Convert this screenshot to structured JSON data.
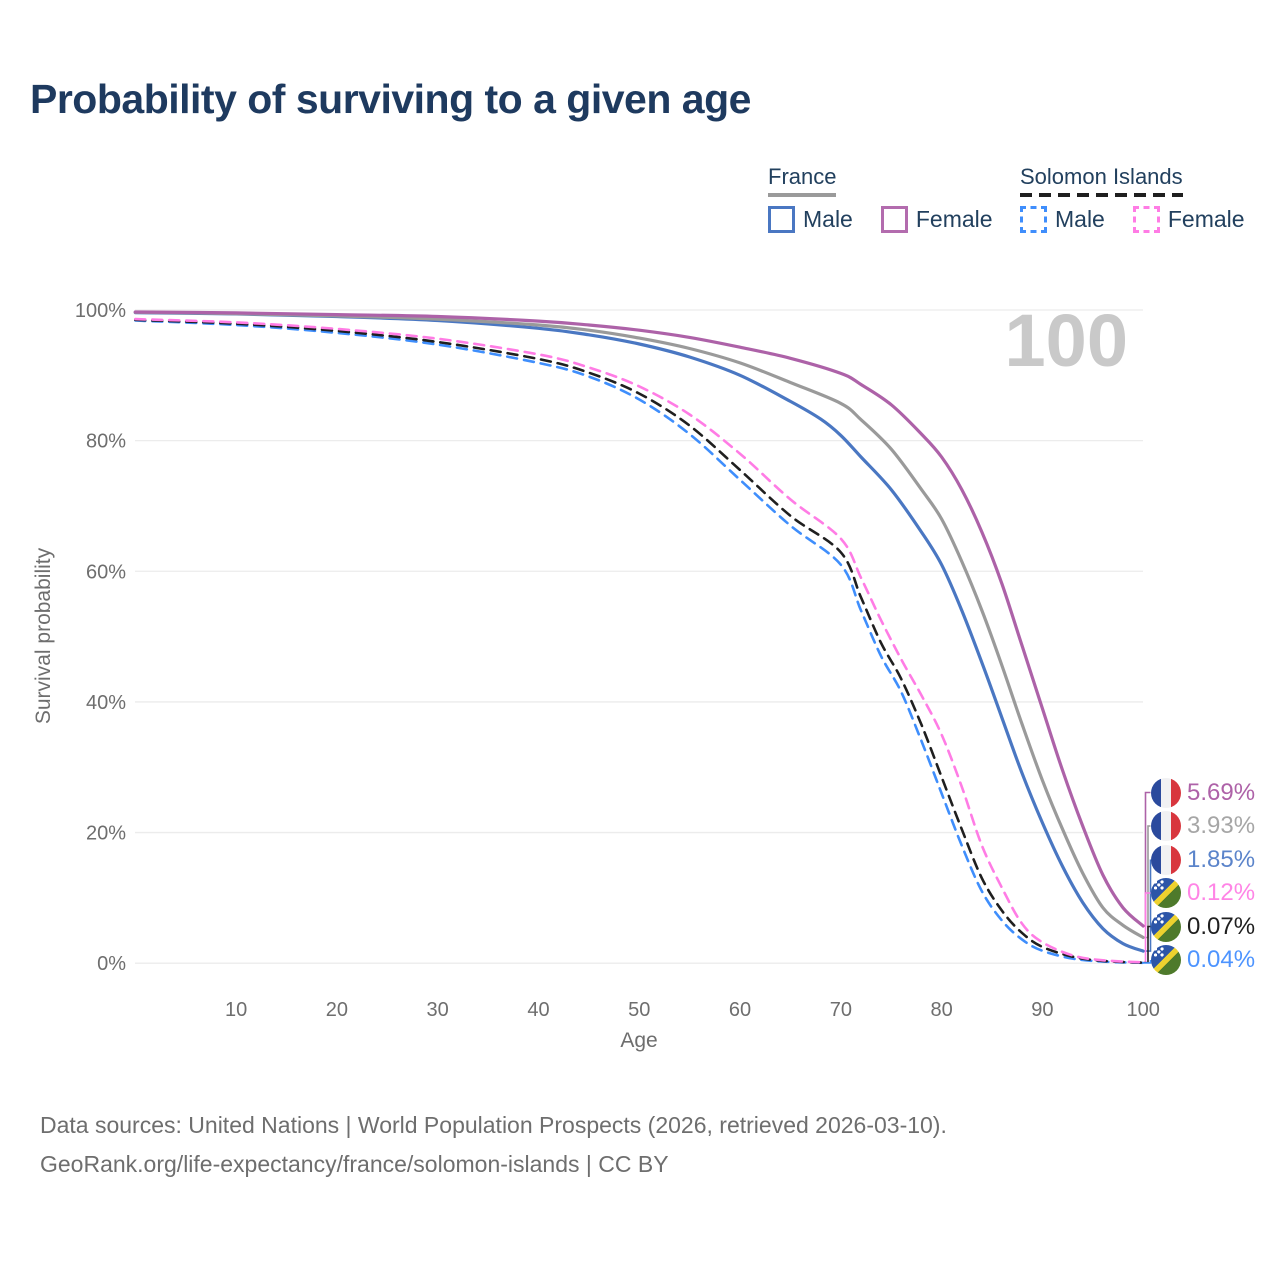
{
  "title": "Probability of surviving to a given age",
  "watermark_age": "100",
  "legend": {
    "groups": [
      {
        "label": "France",
        "line_style": "solid",
        "items": [
          {
            "label": "Male",
            "swatch_color": "#4a77c2",
            "dashed": false
          },
          {
            "label": "Female",
            "swatch_color": "#b36cae",
            "dashed": false
          }
        ]
      },
      {
        "label": "Solomon Islands",
        "line_style": "dashed",
        "items": [
          {
            "label": "Male",
            "swatch_color": "#3f8efc",
            "dashed": true
          },
          {
            "label": "Female",
            "swatch_color": "#ff7ce5",
            "dashed": true
          }
        ]
      }
    ]
  },
  "axes": {
    "y_label": "Survival probability",
    "x_label": "Age",
    "y_ticks": [
      {
        "value": 0,
        "label": "0%"
      },
      {
        "value": 20,
        "label": "20%"
      },
      {
        "value": 40,
        "label": "40%"
      },
      {
        "value": 60,
        "label": "60%"
      },
      {
        "value": 80,
        "label": "80%"
      },
      {
        "value": 100,
        "label": "100%"
      }
    ],
    "x_ticks": [
      {
        "value": 10,
        "label": "10"
      },
      {
        "value": 20,
        "label": "20"
      },
      {
        "value": 30,
        "label": "30"
      },
      {
        "value": 40,
        "label": "40"
      },
      {
        "value": 50,
        "label": "50"
      },
      {
        "value": 60,
        "label": "60"
      },
      {
        "value": 70,
        "label": "70"
      },
      {
        "value": 80,
        "label": "80"
      },
      {
        "value": 90,
        "label": "90"
      },
      {
        "value": 100,
        "label": "100"
      }
    ]
  },
  "footer": {
    "line1": "Data sources: United Nations | World Population Prospects (2026, retrieved 2026-03-10).",
    "line2": "GeoRank.org/life-expectancy/france/solomon-islands | CC BY"
  },
  "chart_data": {
    "type": "line",
    "title": "Probability of surviving to a given age",
    "xlabel": "Age",
    "ylabel": "Survival probability",
    "xlim": [
      0,
      100
    ],
    "ylim": [
      0,
      100
    ],
    "grid": "horizontal",
    "legend_position": "top-right",
    "series": [
      {
        "id": "solomon-islands-male",
        "name": "Solomon Islands Male",
        "country": "Solomon Islands",
        "sex": "male",
        "color": "#3f8efc",
        "label_color": "#4d94ff",
        "dash": true,
        "flag": "solomon-islands",
        "end_label": "0.04%",
        "end_value": 0.04,
        "points": [
          [
            0,
            98.4
          ],
          [
            10,
            97.7
          ],
          [
            20,
            96.5
          ],
          [
            30,
            94.7
          ],
          [
            40,
            91.9
          ],
          [
            45,
            89.8
          ],
          [
            50,
            86.3
          ],
          [
            55,
            81
          ],
          [
            60,
            74
          ],
          [
            65,
            67
          ],
          [
            70,
            61
          ],
          [
            72,
            54
          ],
          [
            74,
            47
          ],
          [
            76,
            41.5
          ],
          [
            78,
            34
          ],
          [
            80,
            26
          ],
          [
            82,
            18
          ],
          [
            84,
            11
          ],
          [
            86,
            6.5
          ],
          [
            88,
            3.6
          ],
          [
            90,
            1.9
          ],
          [
            93,
            0.7
          ],
          [
            96,
            0.25
          ],
          [
            100,
            0.04
          ]
        ]
      },
      {
        "id": "solomon-islands-all",
        "name": "Solomon Islands Both sexes",
        "country": "Solomon Islands",
        "sex": "all",
        "color": "#1f1f1f",
        "label_color": "#1f1f1f",
        "dash": true,
        "flag": "solomon-islands",
        "end_label": "0.07%",
        "end_value": 0.07,
        "points": [
          [
            0,
            98.5
          ],
          [
            10,
            97.9
          ],
          [
            20,
            96.8
          ],
          [
            30,
            95.1
          ],
          [
            40,
            92.5
          ],
          [
            45,
            90.4
          ],
          [
            50,
            87.2
          ],
          [
            55,
            82.3
          ],
          [
            60,
            75.5
          ],
          [
            65,
            68.5
          ],
          [
            70,
            62.9
          ],
          [
            72,
            56
          ],
          [
            74,
            49
          ],
          [
            76,
            43.5
          ],
          [
            78,
            36.5
          ],
          [
            80,
            28.5
          ],
          [
            82,
            20.5
          ],
          [
            84,
            13
          ],
          [
            86,
            8
          ],
          [
            88,
            4.6
          ],
          [
            90,
            2.5
          ],
          [
            93,
            1
          ],
          [
            96,
            0.35
          ],
          [
            100,
            0.07
          ]
        ]
      },
      {
        "id": "solomon-islands-female",
        "name": "Solomon Islands Female",
        "country": "Solomon Islands",
        "sex": "female",
        "color": "#ff7ce5",
        "label_color": "#ff85e6",
        "dash": true,
        "flag": "solomon-islands",
        "end_label": "0.12%",
        "end_value": 0.12,
        "points": [
          [
            0,
            98.6
          ],
          [
            10,
            98.1
          ],
          [
            20,
            97.1
          ],
          [
            30,
            95.6
          ],
          [
            40,
            93.2
          ],
          [
            45,
            91.2
          ],
          [
            50,
            88.3
          ],
          [
            55,
            84
          ],
          [
            60,
            78
          ],
          [
            65,
            71
          ],
          [
            70,
            65
          ],
          [
            72,
            59
          ],
          [
            74,
            52.5
          ],
          [
            76,
            46.5
          ],
          [
            78,
            41
          ],
          [
            80,
            35
          ],
          [
            82,
            27
          ],
          [
            84,
            18
          ],
          [
            86,
            11.5
          ],
          [
            88,
            6
          ],
          [
            90,
            3.2
          ],
          [
            93,
            1.2
          ],
          [
            96,
            0.45
          ],
          [
            100,
            0.12
          ]
        ]
      },
      {
        "id": "france-male",
        "name": "France Male",
        "country": "France",
        "sex": "male",
        "color": "#4a77c2",
        "label_color": "#5b84ca",
        "dash": false,
        "flag": "france",
        "end_label": "1.85%",
        "end_value": 1.85,
        "points": [
          [
            0,
            99.6
          ],
          [
            10,
            99.4
          ],
          [
            20,
            99
          ],
          [
            30,
            98.4
          ],
          [
            40,
            97.2
          ],
          [
            45,
            96.2
          ],
          [
            50,
            94.8
          ],
          [
            55,
            92.8
          ],
          [
            60,
            90
          ],
          [
            65,
            86
          ],
          [
            68,
            83.3
          ],
          [
            70,
            80.8
          ],
          [
            72,
            77.5
          ],
          [
            75,
            72.5
          ],
          [
            78,
            66
          ],
          [
            80,
            61
          ],
          [
            82,
            54
          ],
          [
            84,
            46
          ],
          [
            86,
            37.5
          ],
          [
            88,
            29
          ],
          [
            90,
            21.5
          ],
          [
            92,
            14.8
          ],
          [
            94,
            9.3
          ],
          [
            96,
            5.3
          ],
          [
            98,
            3
          ],
          [
            100,
            1.85
          ]
        ]
      },
      {
        "id": "france-all",
        "name": "France Both sexes",
        "country": "France",
        "sex": "all",
        "color": "#9a9a9a",
        "label_color": "#a6a6a6",
        "dash": false,
        "flag": "france",
        "end_label": "3.93%",
        "end_value": 3.93,
        "points": [
          [
            0,
            99.65
          ],
          [
            10,
            99.45
          ],
          [
            20,
            99.1
          ],
          [
            30,
            98.6
          ],
          [
            40,
            97.7
          ],
          [
            45,
            96.9
          ],
          [
            50,
            95.7
          ],
          [
            55,
            94.1
          ],
          [
            60,
            91.9
          ],
          [
            65,
            88.9
          ],
          [
            70,
            85.7
          ],
          [
            72,
            83.2
          ],
          [
            75,
            78.7
          ],
          [
            78,
            72.5
          ],
          [
            80,
            68
          ],
          [
            82,
            61.5
          ],
          [
            84,
            54
          ],
          [
            86,
            45.5
          ],
          [
            88,
            36.5
          ],
          [
            90,
            28
          ],
          [
            92,
            20.5
          ],
          [
            94,
            13.8
          ],
          [
            96,
            8.5
          ],
          [
            98,
            5.8
          ],
          [
            100,
            3.93
          ]
        ]
      },
      {
        "id": "france-female",
        "name": "France Female",
        "country": "France",
        "sex": "female",
        "color": "#ad62a8",
        "label_color": "#ae62a8",
        "dash": false,
        "flag": "france",
        "end_label": "5.69%",
        "end_value": 5.69,
        "points": [
          [
            0,
            99.7
          ],
          [
            10,
            99.55
          ],
          [
            20,
            99.3
          ],
          [
            30,
            99
          ],
          [
            40,
            98.3
          ],
          [
            45,
            97.7
          ],
          [
            50,
            96.9
          ],
          [
            55,
            95.8
          ],
          [
            60,
            94.3
          ],
          [
            65,
            92.6
          ],
          [
            70,
            90.3
          ],
          [
            72,
            88.6
          ],
          [
            75,
            85.5
          ],
          [
            78,
            81
          ],
          [
            80,
            77.5
          ],
          [
            82,
            72.5
          ],
          [
            84,
            66
          ],
          [
            86,
            58
          ],
          [
            88,
            48.5
          ],
          [
            90,
            39
          ],
          [
            92,
            29.5
          ],
          [
            94,
            21
          ],
          [
            96,
            13.5
          ],
          [
            98,
            8.5
          ],
          [
            100,
            5.69
          ]
        ]
      }
    ]
  }
}
